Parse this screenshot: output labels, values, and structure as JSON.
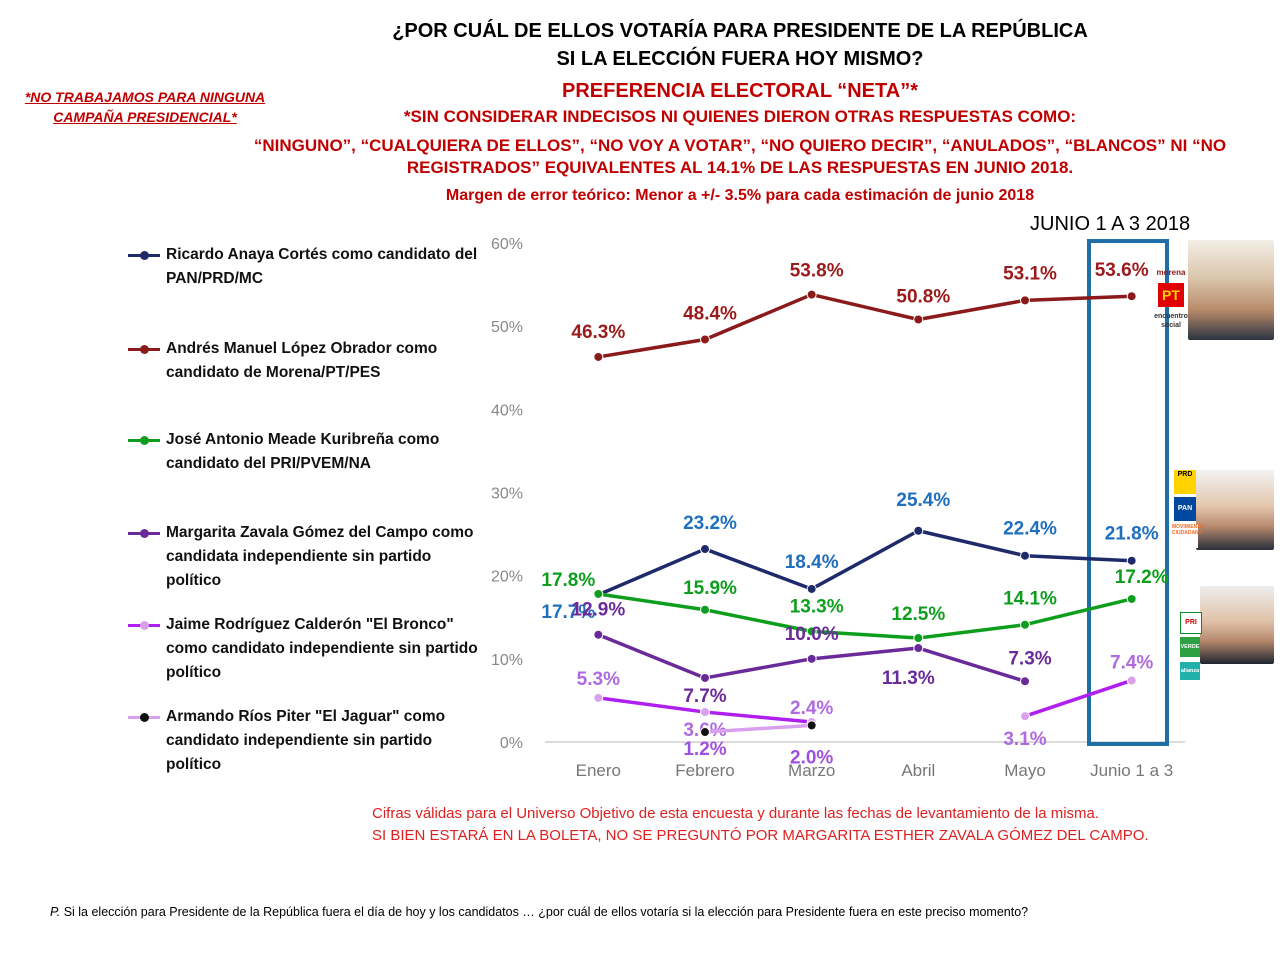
{
  "header": {
    "title_line1": "¿POR CUÁL DE ELLOS VOTARÍA PARA PRESIDENTE DE LA REPÚBLICA",
    "title_line2": "SI LA ELECCIÓN FUERA HOY MISMO?",
    "subtitle": "PREFERENCIA ELECTORAL “NETA”*",
    "note_line1": "*SIN CONSIDERAR INDECISOS NI QUIENES DIERON OTRAS RESPUESTAS COMO:",
    "note_line2": "“NINGUNO”, “CUALQUIERA DE ELLOS”, “NO VOY A VOTAR”, “NO QUIERO DECIR”, “ANULADOS”, “BLANCOS” NI “NO REGISTRADOS” EQUIVALENTES AL 14.1% DE LAS RESPUESTAS EN JUNIO 2018.",
    "margin_error": "Margen de error teórico: Menor a +/- 3.5% para cada estimación de junio 2018"
  },
  "side_note": "*NO TRABAJAMOS PARA NINGUNA CAMPAÑA PRESIDENCIAL*",
  "highlight_label": "JUNIO 1 A 3 2018",
  "logos": {
    "morena": "morena",
    "pt": "PT",
    "pes": "encuentro social",
    "prd": "PRD",
    "pan": "PAN",
    "mc": "MOVIMIENTO CIUDADANO",
    "pri": "PRI",
    "verde": "VERDE",
    "nueva_alianza": "alianza"
  },
  "footer": {
    "line1": "Cifras válidas para el Universo Objetivo de esta encuesta y durante las fechas de levantamiento de la misma.",
    "line2": "SI BIEN ESTARÁ EN LA BOLETA, NO SE PREGUNTÓ POR MARGARITA ESTHER ZAVALA GÓMEZ DEL CAMPO.",
    "question": "P. Si la elección para Presidente de la República fuera el día de hoy y los candidatos … ¿por cuál de ellos votaría si la elección para Presidente fuera en este preciso momento?"
  },
  "chart_data": {
    "type": "line",
    "title": "PREFERENCIA ELECTORAL “NETA”*",
    "categories": [
      "Enero",
      "Febrero",
      "Marzo",
      "Abril",
      "Mayo",
      "Junio 1 a 3"
    ],
    "ylim": [
      0,
      60
    ],
    "yticks": [
      "0%",
      "10%",
      "20%",
      "30%",
      "40%",
      "50%",
      "60%"
    ],
    "series": [
      {
        "name": "Ricardo Anaya Cortés como candidato del PAN/PRD/MC",
        "color": "#1f2a6b",
        "label_color": "#1f6fbf",
        "values": [
          17.7,
          23.2,
          18.4,
          25.4,
          22.4,
          21.8
        ],
        "labels": [
          "17.7%",
          "23.2%",
          "18.4%",
          "25.4%",
          "22.4%",
          "21.8%"
        ]
      },
      {
        "name": "Andrés Manuel López Obrador como candidato de Morena/PT/PES",
        "color": "#8b1a1a",
        "label_color": "#9b1b1b",
        "values": [
          46.3,
          48.4,
          53.8,
          50.8,
          53.1,
          53.6
        ],
        "labels": [
          "46.3%",
          "48.4%",
          "53.8%",
          "50.8%",
          "53.1%",
          "53.6%"
        ]
      },
      {
        "name": "José Antonio Meade Kuribreña como candidato del PRI/PVEM/NA",
        "color": "#0e9e1e",
        "label_color": "#0e9e1e",
        "values": [
          17.8,
          15.9,
          13.3,
          12.5,
          14.1,
          17.2
        ],
        "labels": [
          "17.8%",
          "15.9%",
          "13.3%",
          "12.5%",
          "14.1%",
          "17.2%"
        ]
      },
      {
        "name": "Margarita Zavala Gómez del Campo como candidata independiente sin partido político",
        "color": "#6a2a9a",
        "label_color": "#6a2a9a",
        "values": [
          12.9,
          7.7,
          10.0,
          11.3,
          7.3,
          null
        ],
        "labels": [
          "12.9%",
          "7.7%",
          "10.0%",
          "11.3%",
          "7.3%",
          ""
        ]
      },
      {
        "name": "Jaime Rodríguez Calderón \"El Bronco\" como candidato independiente sin partido político",
        "color": "#b01ef0",
        "label_color": "#b06ae0",
        "values": [
          5.3,
          3.6,
          2.4,
          null,
          3.1,
          7.4
        ],
        "labels": [
          "5.3%",
          "3.6%",
          "2.4%",
          "",
          "3.1%",
          "7.4%"
        ]
      },
      {
        "name": "Armando Ríos Piter \"El Jaguar\" como candidato independiente sin partido político",
        "color": "#d9a0f0",
        "label_color": "#a050e0",
        "values": [
          null,
          1.2,
          2.0,
          null,
          null,
          null
        ],
        "labels": [
          "",
          "1.2%",
          "2.0%",
          "",
          "",
          ""
        ]
      }
    ]
  }
}
